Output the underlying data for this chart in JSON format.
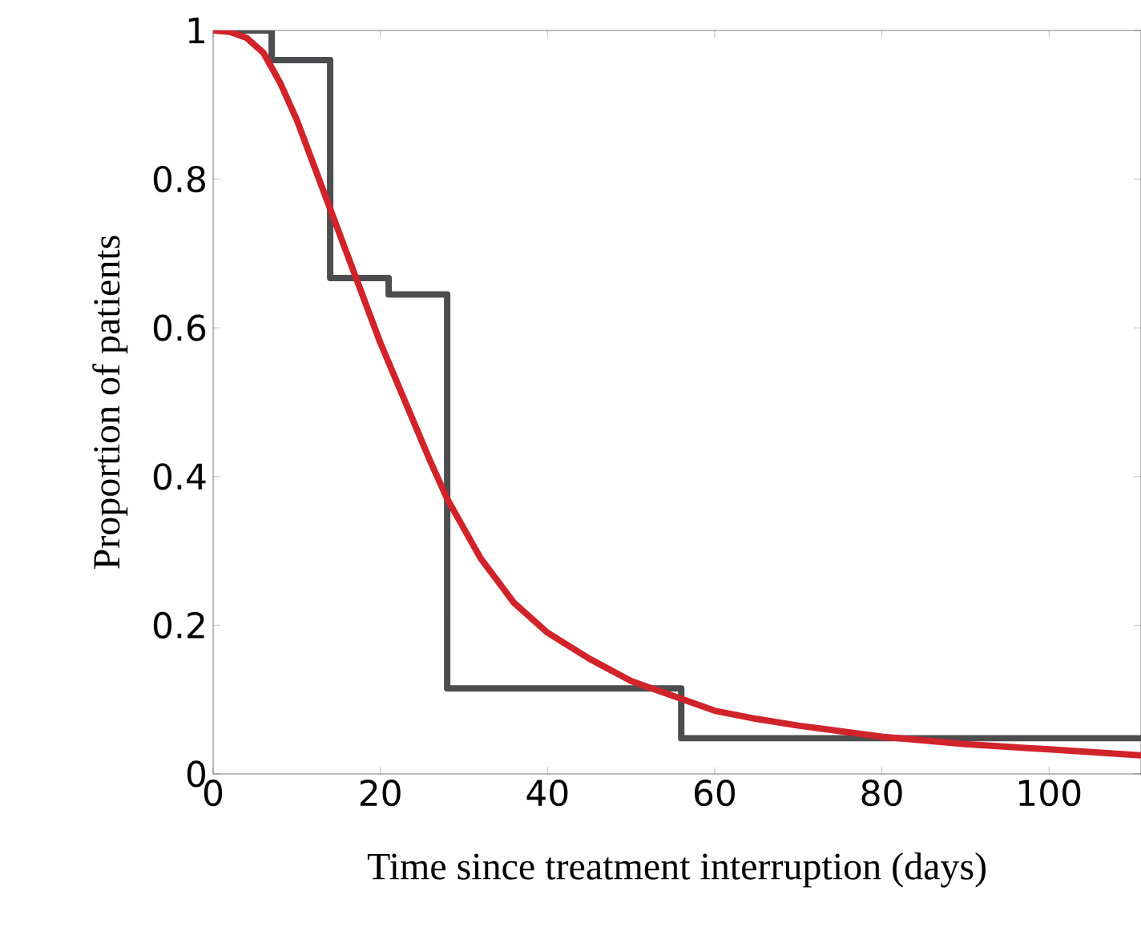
{
  "chart_data": {
    "type": "line",
    "xlabel": "Time since treatment interruption (days)",
    "ylabel": "Proportion of patients",
    "xlim": [
      0,
      111
    ],
    "ylim": [
      0,
      1
    ],
    "xticks": [
      0,
      20,
      40,
      60,
      80,
      100
    ],
    "yticks": [
      0,
      0.2,
      0.4,
      0.6,
      0.8,
      1
    ],
    "grid": false,
    "series": [
      {
        "type": "step",
        "color": "#4d4d4f",
        "x": [
          0,
          7,
          14,
          21,
          28,
          56,
          111
        ],
        "values": [
          1,
          0.96,
          0.667,
          0.645,
          0.115,
          0.048,
          0.048
        ]
      },
      {
        "color": "#d1232a",
        "x": [
          0,
          2,
          4,
          6,
          8,
          10,
          12,
          14,
          17,
          20,
          23,
          26,
          28,
          30,
          32,
          34,
          36,
          38,
          40,
          45,
          50,
          55,
          60,
          65,
          70,
          80,
          90,
          100,
          111
        ],
        "values": [
          1,
          0.998,
          0.99,
          0.97,
          0.93,
          0.88,
          0.82,
          0.76,
          0.67,
          0.58,
          0.5,
          0.42,
          0.37,
          0.33,
          0.29,
          0.26,
          0.23,
          0.21,
          0.19,
          0.155,
          0.125,
          0.105,
          0.085,
          0.074,
          0.065,
          0.05,
          0.04,
          0.033,
          0.025
        ]
      }
    ]
  }
}
